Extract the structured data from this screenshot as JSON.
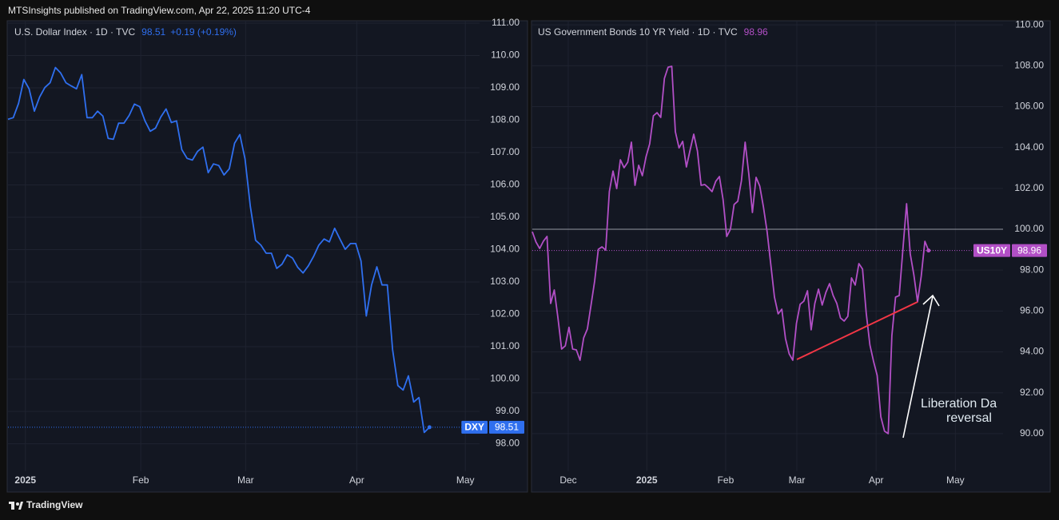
{
  "header": "MTSInsights published on TradingView.com, Apr 22, 2025 11:20 UTC-4",
  "footer": "TradingView",
  "chart_data": [
    {
      "type": "line",
      "title": "U.S. Dollar Index · 1D · TVC",
      "change": "+0.19 (+0.19%)",
      "symbol": "DXY",
      "color": "#2f6fef",
      "values": [
        108.03,
        108.08,
        108.52,
        109.26,
        108.97,
        108.28,
        108.72,
        109.01,
        109.16,
        109.63,
        109.46,
        109.16,
        109.06,
        108.97,
        109.41,
        108.08,
        108.08,
        108.28,
        108.13,
        107.44,
        107.41,
        107.91,
        107.91,
        108.15,
        108.5,
        108.42,
        107.98,
        107.66,
        107.76,
        108.1,
        108.35,
        107.93,
        107.98,
        107.09,
        106.82,
        106.77,
        107.04,
        107.17,
        106.38,
        106.65,
        106.6,
        106.31,
        106.5,
        107.29,
        107.56,
        106.8,
        105.34,
        104.29,
        104.14,
        103.89,
        103.89,
        103.42,
        103.55,
        103.84,
        103.74,
        103.45,
        103.28,
        103.5,
        103.79,
        104.14,
        104.33,
        104.24,
        104.66,
        104.33,
        104.01,
        104.19,
        104.19,
        103.65,
        101.95,
        102.91,
        103.47,
        102.91,
        102.91,
        100.91,
        99.8,
        99.66,
        100.1,
        99.29,
        99.43,
        98.35,
        98.51
      ],
      "xlim": [
        0,
        89.5
      ],
      "xticks": [
        {
          "value": 3.3,
          "label": "2025"
        },
        {
          "value": 25.2,
          "label": "Feb"
        },
        {
          "value": 45.1,
          "label": "Mar"
        },
        {
          "value": 66.2,
          "label": "Apr"
        },
        {
          "value": 86.8,
          "label": "May"
        }
      ],
      "ylim": [
        97.15,
        111.05
      ],
      "yticks": [
        {
          "value": 98,
          "label": "98.00"
        },
        {
          "value": 99,
          "label": "99.00"
        },
        {
          "value": 100,
          "label": "100.00"
        },
        {
          "value": 101,
          "label": "101.00"
        },
        {
          "value": 102,
          "label": "102.00"
        },
        {
          "value": 103,
          "label": "103.00"
        },
        {
          "value": 104,
          "label": "104.00"
        },
        {
          "value": 105,
          "label": "105.00"
        },
        {
          "value": 106,
          "label": "106.00"
        },
        {
          "value": 107,
          "label": "107.00"
        },
        {
          "value": 108,
          "label": "108.00"
        },
        {
          "value": 109,
          "label": "109.00"
        },
        {
          "value": 110,
          "label": "110.00"
        },
        {
          "value": 111,
          "label": "111.00"
        }
      ],
      "grid": true
    },
    {
      "type": "line",
      "title": "US Government Bonds 10 YR Yield · 1D · TVC",
      "symbol": "US10Y",
      "color": "#b24fc6",
      "values": [
        99.88,
        99.38,
        99.06,
        99.41,
        99.65,
        96.37,
        97.03,
        95.66,
        94.14,
        94.3,
        95.2,
        94.14,
        94.1,
        93.59,
        94.69,
        95.12,
        96.29,
        97.46,
        99.02,
        99.14,
        98.98,
        101.84,
        102.85,
        101.99,
        103.4,
        103.01,
        103.28,
        104.26,
        102.15,
        103.13,
        102.62,
        103.55,
        104.18,
        105.55,
        105.7,
        105.47,
        107.38,
        107.93,
        107.97,
        104.77,
        103.98,
        104.3,
        103.05,
        103.87,
        104.65,
        103.83,
        102.15,
        102.19,
        102.03,
        101.84,
        102.34,
        102.58,
        101.45,
        99.65,
        100.0,
        101.21,
        101.37,
        102.38,
        104.26,
        102.7,
        100.82,
        102.54,
        102.11,
        101.09,
        99.88,
        98.28,
        96.68,
        95.86,
        96.09,
        94.65,
        93.91,
        93.59,
        95.39,
        96.33,
        96.48,
        96.99,
        95.08,
        96.37,
        97.07,
        96.29,
        96.91,
        97.34,
        96.76,
        96.37,
        95.66,
        95.51,
        95.74,
        97.62,
        97.27,
        98.32,
        98.05,
        95.9,
        94.34,
        93.55,
        92.85,
        90.82,
        90.12,
        90.0,
        94.8,
        96.68,
        96.76,
        99.02,
        101.25,
        98.79,
        97.77,
        96.45,
        97.7,
        99.41,
        98.96
      ],
      "xlim": [
        0,
        128.3
      ],
      "xticks": [
        {
          "value": 9.8,
          "label": "Dec"
        },
        {
          "value": 31.2,
          "label": "2025"
        },
        {
          "value": 52.7,
          "label": "Feb"
        },
        {
          "value": 72.1,
          "label": "Mar"
        },
        {
          "value": 93.7,
          "label": "Apr"
        },
        {
          "value": 115.3,
          "label": "May"
        }
      ],
      "ylim": [
        88.16,
        110.16
      ],
      "yticks": [
        {
          "value": 90,
          "label": "90.00"
        },
        {
          "value": 92,
          "label": "92.00"
        },
        {
          "value": 94,
          "label": "94.00"
        },
        {
          "value": 96,
          "label": "96.00"
        },
        {
          "value": 98,
          "label": "98.00"
        },
        {
          "value": 100,
          "label": "100.00"
        },
        {
          "value": 102,
          "label": "102.00"
        },
        {
          "value": 104,
          "label": "104.00"
        },
        {
          "value": 106,
          "label": "106.00"
        },
        {
          "value": 108,
          "label": "108.00"
        },
        {
          "value": 110,
          "label": "110.00"
        }
      ],
      "hline": {
        "value": 100,
        "color": "#9598a1"
      },
      "annotations": [
        "Liberation Da",
        "reversal"
      ],
      "grid": true
    }
  ]
}
